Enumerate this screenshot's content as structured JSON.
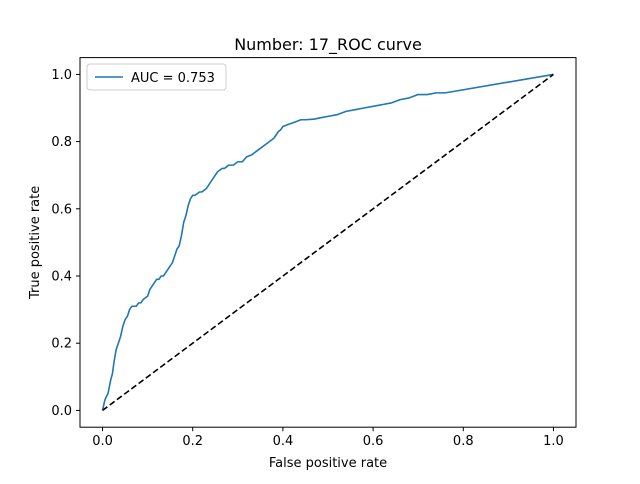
{
  "chart_data": {
    "type": "line",
    "title": "Number: 17_ROC curve",
    "xlabel": "False positive rate",
    "ylabel": "True positive rate",
    "xlim": [
      -0.05,
      1.05
    ],
    "ylim": [
      -0.05,
      1.05
    ],
    "xticks": [
      0.0,
      0.2,
      0.4,
      0.6,
      0.8,
      1.0
    ],
    "yticks": [
      0.0,
      0.2,
      0.4,
      0.6,
      0.8,
      1.0
    ],
    "xtick_labels": [
      "0.0",
      "0.2",
      "0.4",
      "0.6",
      "0.8",
      "1.0"
    ],
    "ytick_labels": [
      "0.0",
      "0.2",
      "0.4",
      "0.6",
      "0.8",
      "1.0"
    ],
    "grid": false,
    "legend_position": "upper-left",
    "series": [
      {
        "name": "AUC = 0.753",
        "color": "#1f77b4",
        "style": "solid",
        "x": [
          0.0,
          0.005,
          0.008,
          0.012,
          0.015,
          0.018,
          0.022,
          0.025,
          0.03,
          0.035,
          0.04,
          0.045,
          0.05,
          0.055,
          0.06,
          0.065,
          0.07,
          0.075,
          0.08,
          0.085,
          0.09,
          0.1,
          0.105,
          0.11,
          0.115,
          0.12,
          0.125,
          0.13,
          0.135,
          0.14,
          0.145,
          0.15,
          0.155,
          0.16,
          0.165,
          0.17,
          0.175,
          0.18,
          0.185,
          0.19,
          0.195,
          0.2,
          0.205,
          0.21,
          0.215,
          0.22,
          0.225,
          0.23,
          0.235,
          0.24,
          0.25,
          0.255,
          0.26,
          0.265,
          0.27,
          0.275,
          0.28,
          0.285,
          0.29,
          0.3,
          0.31,
          0.32,
          0.33,
          0.34,
          0.35,
          0.36,
          0.37,
          0.38,
          0.385,
          0.39,
          0.395,
          0.4,
          0.41,
          0.42,
          0.43,
          0.44,
          0.45,
          0.46,
          0.47,
          0.48,
          0.5,
          0.52,
          0.54,
          0.56,
          0.58,
          0.6,
          0.62,
          0.64,
          0.66,
          0.68,
          0.7,
          0.72,
          0.74,
          0.76,
          1.0
        ],
        "y": [
          0.0,
          0.03,
          0.04,
          0.05,
          0.07,
          0.09,
          0.11,
          0.14,
          0.18,
          0.2,
          0.22,
          0.25,
          0.27,
          0.28,
          0.3,
          0.31,
          0.31,
          0.31,
          0.32,
          0.32,
          0.33,
          0.34,
          0.36,
          0.37,
          0.38,
          0.39,
          0.39,
          0.4,
          0.4,
          0.41,
          0.42,
          0.43,
          0.44,
          0.46,
          0.48,
          0.49,
          0.52,
          0.56,
          0.58,
          0.61,
          0.63,
          0.64,
          0.64,
          0.645,
          0.65,
          0.65,
          0.655,
          0.66,
          0.67,
          0.68,
          0.7,
          0.71,
          0.715,
          0.72,
          0.72,
          0.725,
          0.73,
          0.73,
          0.73,
          0.74,
          0.74,
          0.755,
          0.76,
          0.77,
          0.78,
          0.79,
          0.8,
          0.81,
          0.82,
          0.83,
          0.835,
          0.845,
          0.85,
          0.855,
          0.86,
          0.865,
          0.865,
          0.866,
          0.867,
          0.87,
          0.875,
          0.88,
          0.89,
          0.895,
          0.9,
          0.905,
          0.91,
          0.915,
          0.925,
          0.93,
          0.94,
          0.94,
          0.945,
          0.945,
          1.0
        ]
      },
      {
        "name": "",
        "color": "#000000",
        "style": "dashed",
        "x": [
          0.0,
          1.0
        ],
        "y": [
          0.0,
          1.0
        ]
      }
    ]
  }
}
